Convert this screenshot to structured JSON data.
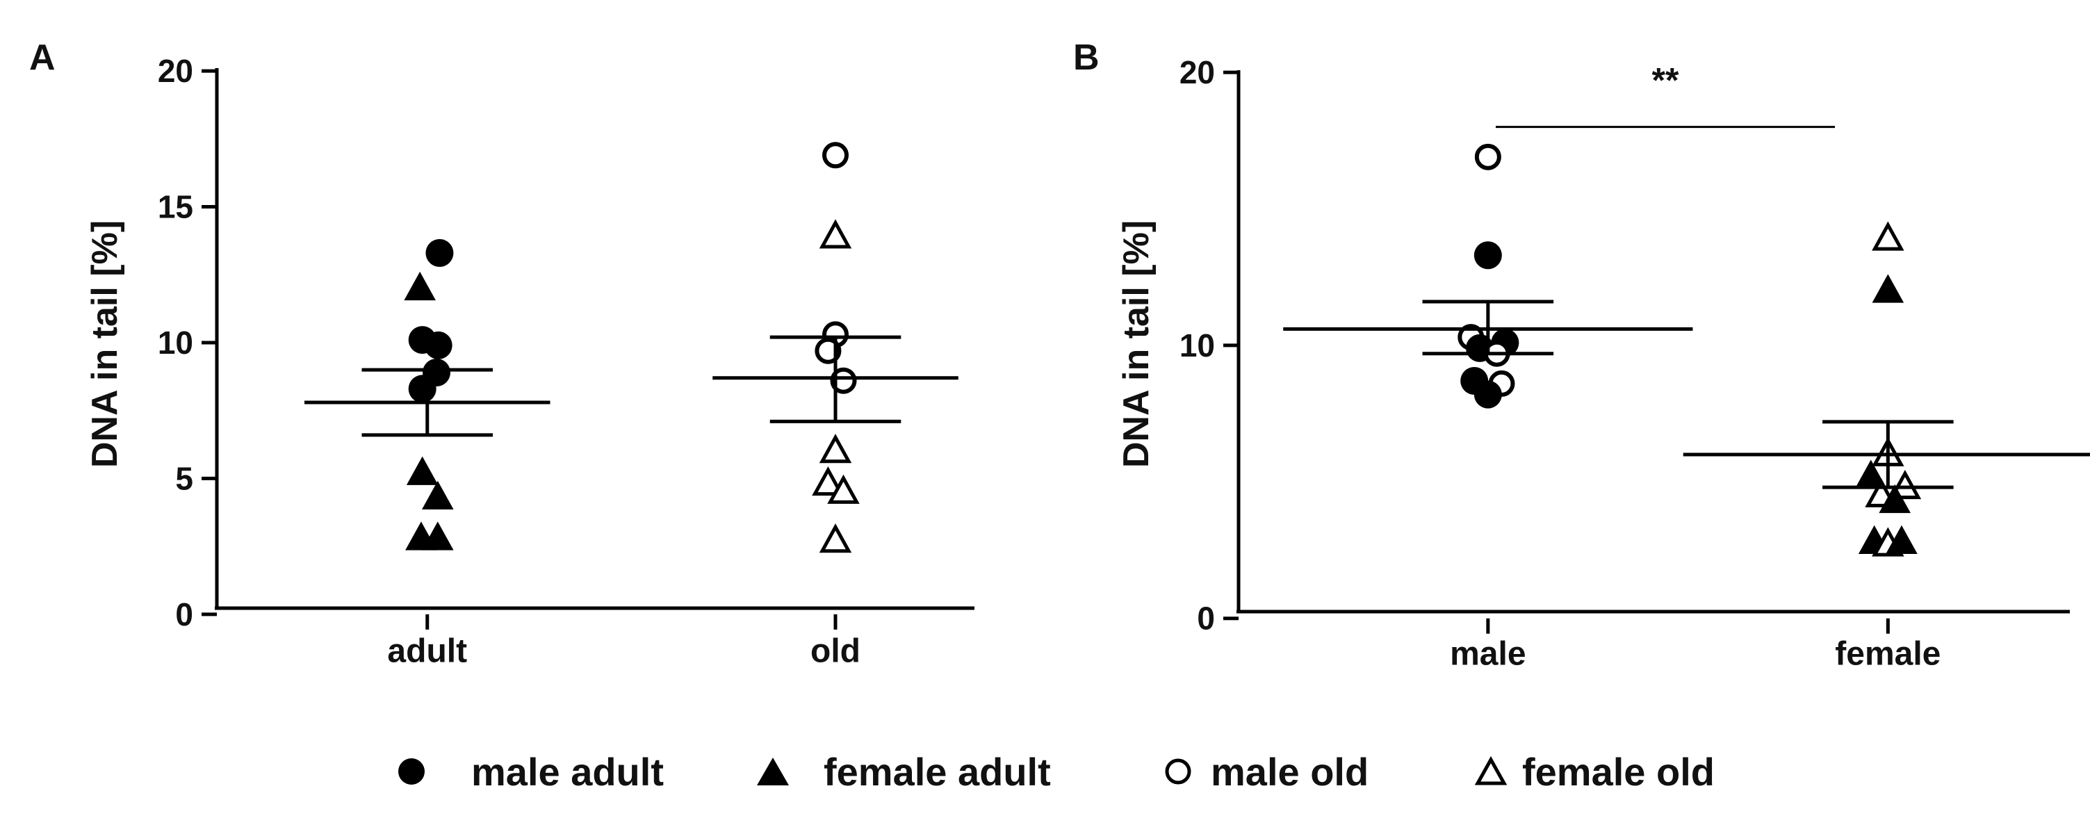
{
  "chart_data": [
    {
      "panel": "A",
      "type": "scatter",
      "ylabel": "DNA in tail [%]",
      "ylim": [
        0,
        20
      ],
      "yticks": [
        0,
        5,
        10,
        15,
        20
      ],
      "categories": [
        "adult",
        "old"
      ],
      "groups": [
        {
          "category": "adult",
          "mean": 7.8,
          "sem_low": 6.6,
          "sem_high": 9.0,
          "points": [
            {
              "series": "male adult",
              "value": 13.3,
              "offset": 0.2
            },
            {
              "series": "male adult",
              "value": 10.1,
              "offset": -0.08
            },
            {
              "series": "male adult",
              "value": 9.9,
              "offset": 0.18
            },
            {
              "series": "male adult",
              "value": 8.9,
              "offset": 0.15
            },
            {
              "series": "male adult",
              "value": 8.3,
              "offset": -0.08
            },
            {
              "series": "female adult",
              "value": 12.0,
              "offset": -0.12
            },
            {
              "series": "female adult",
              "value": 5.2,
              "offset": -0.08
            },
            {
              "series": "female adult",
              "value": 4.3,
              "offset": 0.17
            },
            {
              "series": "female adult",
              "value": 2.8,
              "offset": -0.1
            },
            {
              "series": "female adult",
              "value": 2.8,
              "offset": 0.17
            }
          ]
        },
        {
          "category": "old",
          "mean": 8.7,
          "sem_low": 7.1,
          "sem_high": 10.2,
          "points": [
            {
              "series": "male old",
              "value": 16.9,
              "offset": 0.0
            },
            {
              "series": "male old",
              "value": 10.3,
              "offset": 0.0
            },
            {
              "series": "male old",
              "value": 9.7,
              "offset": -0.12
            },
            {
              "series": "male old",
              "value": 8.6,
              "offset": 0.13
            },
            {
              "series": "female old",
              "value": 13.9,
              "offset": 0.0
            },
            {
              "series": "female old",
              "value": 6.0,
              "offset": 0.0
            },
            {
              "series": "female old",
              "value": 4.8,
              "offset": -0.12
            },
            {
              "series": "female old",
              "value": 4.5,
              "offset": 0.13
            },
            {
              "series": "female old",
              "value": 2.7,
              "offset": 0.0
            }
          ]
        }
      ]
    },
    {
      "panel": "B",
      "type": "scatter",
      "ylabel": "DNA in tail [%]",
      "ylim": [
        0,
        20
      ],
      "yticks": [
        0,
        10,
        20
      ],
      "categories": [
        "male",
        "female"
      ],
      "significance": {
        "label": "**",
        "from": "male",
        "to": "female",
        "value": 18.0
      },
      "groups": [
        {
          "category": "male",
          "mean": 10.6,
          "sem_low": 9.7,
          "sem_high": 11.6,
          "points": [
            {
              "series": "male old",
              "value": 16.9,
              "offset": 0.0
            },
            {
              "series": "male adult",
              "value": 13.3,
              "offset": 0.0
            },
            {
              "series": "male old",
              "value": 10.3,
              "offset": -0.25
            },
            {
              "series": "male adult",
              "value": 10.1,
              "offset": 0.25
            },
            {
              "series": "male adult",
              "value": 9.9,
              "offset": -0.12
            },
            {
              "series": "male old",
              "value": 9.7,
              "offset": 0.13
            },
            {
              "series": "male adult",
              "value": 8.7,
              "offset": -0.2
            },
            {
              "series": "male old",
              "value": 8.6,
              "offset": 0.2
            },
            {
              "series": "male adult",
              "value": 8.2,
              "offset": 0.0
            }
          ]
        },
        {
          "category": "female",
          "mean": 6.0,
          "sem_low": 4.8,
          "sem_high": 7.2,
          "points": [
            {
              "series": "female old",
              "value": 13.9,
              "offset": 0.0
            },
            {
              "series": "female adult",
              "value": 12.0,
              "offset": 0.0
            },
            {
              "series": "female old",
              "value": 6.0,
              "offset": 0.0
            },
            {
              "series": "female adult",
              "value": 5.2,
              "offset": -0.25
            },
            {
              "series": "female old",
              "value": 4.8,
              "offset": 0.25
            },
            {
              "series": "female old",
              "value": 4.5,
              "offset": -0.1
            },
            {
              "series": "female adult",
              "value": 4.3,
              "offset": 0.1
            },
            {
              "series": "female adult",
              "value": 2.8,
              "offset": -0.2
            },
            {
              "series": "female old",
              "value": 2.7,
              "offset": 0.0
            },
            {
              "series": "female adult",
              "value": 2.8,
              "offset": 0.2
            }
          ]
        }
      ]
    }
  ],
  "legend": [
    {
      "label": "male adult",
      "marker": "filled-circle"
    },
    {
      "label": "female adult",
      "marker": "filled-triangle"
    },
    {
      "label": "male old",
      "marker": "open-circle"
    },
    {
      "label": "female old",
      "marker": "open-triangle"
    }
  ],
  "colors": {
    "ink": "#000000",
    "background": "#ffffff"
  }
}
